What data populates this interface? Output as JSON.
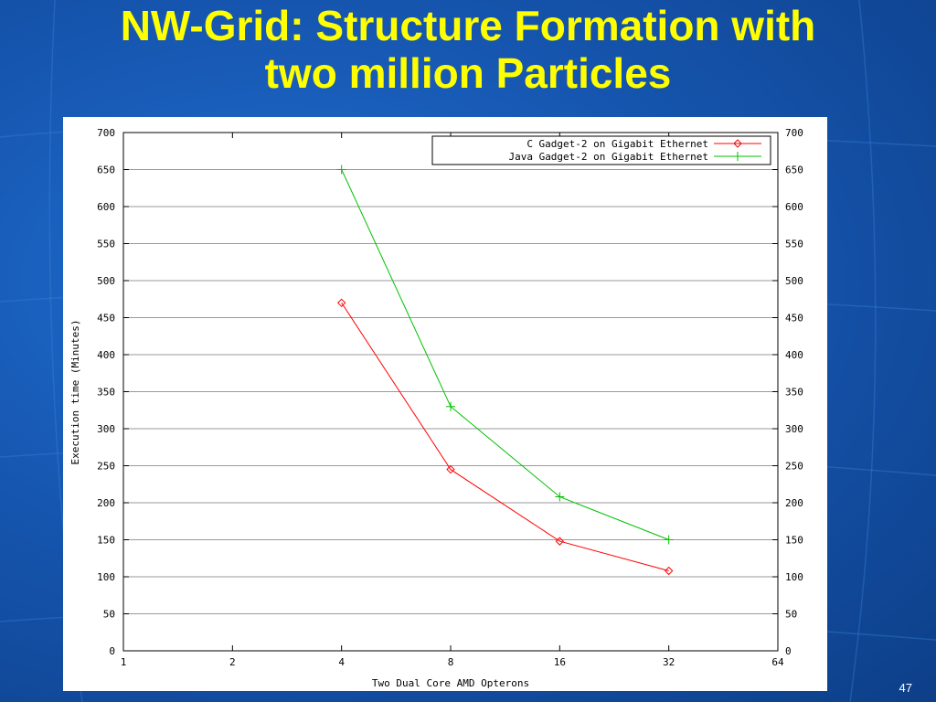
{
  "slide": {
    "title_line1": "NW-Grid: Structure Formation with",
    "title_line2": "two million Particles",
    "page_number": "47",
    "title_color": "#ffff00"
  },
  "chart_data": {
    "type": "line",
    "title": "",
    "xlabel": "Two Dual Core AMD Opterons",
    "ylabel": "Execution time (Minutes)",
    "x_scale": "log2",
    "x_ticks": [
      1,
      2,
      4,
      8,
      16,
      32,
      64
    ],
    "y_ticks": [
      0,
      50,
      100,
      150,
      200,
      250,
      300,
      350,
      400,
      450,
      500,
      550,
      600,
      650,
      700
    ],
    "xlim": [
      1,
      64
    ],
    "ylim": [
      0,
      700
    ],
    "grid": "horizontal",
    "legend_position": "top-right",
    "right_axis_mirror": true,
    "series": [
      {
        "name": "C Gadget-2 on Gigabit Ethernet",
        "color": "#ff0000",
        "marker": "diamond",
        "x": [
          4,
          8,
          16,
          32
        ],
        "y": [
          470,
          245,
          148,
          108
        ]
      },
      {
        "name": "Java Gadget-2 on Gigabit Ethernet",
        "color": "#00c000",
        "marker": "plus",
        "x": [
          4,
          8,
          16,
          32
        ],
        "y": [
          650,
          330,
          208,
          150
        ]
      }
    ]
  }
}
